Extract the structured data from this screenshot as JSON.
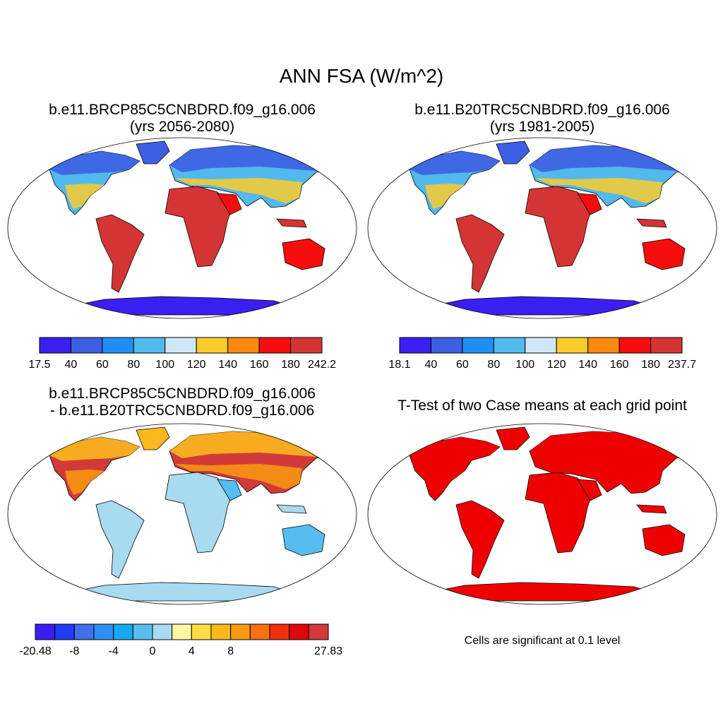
{
  "title": "ANN FSA (W/m^2)",
  "panels": [
    {
      "title_line1": "b.e11.BRCP85C5CNBDRD.f09_g16.006",
      "title_line2": "(yrs 2056-2080)",
      "colorbar": {
        "colors": [
          "#3b1ef2",
          "#3d5fe3",
          "#1e90f5",
          "#52b9ed",
          "#cfe8f7",
          "#fbcb2c",
          "#fb8a0e",
          "#f50d0d",
          "#d43534"
        ],
        "labels": [
          "17.5",
          "40",
          "60",
          "80",
          "100",
          "120",
          "140",
          "160",
          "180",
          "242.2"
        ]
      }
    },
    {
      "title_line1": "b.e11.B20TRC5CNBDRD.f09_g16.006",
      "title_line2": "(yrs 1981-2005)",
      "colorbar": {
        "colors": [
          "#3b1ef2",
          "#3d5fe3",
          "#1e90f5",
          "#52b9ed",
          "#cfe8f7",
          "#fbcb2c",
          "#fb8a0e",
          "#f50d0d",
          "#d43534"
        ],
        "labels": [
          "18.1",
          "40",
          "60",
          "80",
          "100",
          "120",
          "140",
          "160",
          "180",
          "237.7"
        ]
      }
    },
    {
      "title_line1": "b.e11.BRCP85C5CNBDRD.f09_g16.006",
      "title_line2": "- b.e11.B20TRC5CNBDRD.f09_g16.006",
      "colorbar": {
        "colors": [
          "#3b1ef2",
          "#1e3cf5",
          "#3f6ee6",
          "#2f8ff5",
          "#16a9f2",
          "#56bdee",
          "#a8daf0",
          "#fff7a3",
          "#fddc45",
          "#fbb81e",
          "#fa9a12",
          "#f8700f",
          "#f2300e",
          "#e0070c",
          "#d23a3a"
        ],
        "labels": [
          "-20.48",
          "",
          "-8",
          "",
          "-4",
          "",
          "0",
          "",
          "4",
          "",
          "8",
          "",
          "",
          "",
          "",
          "27.83"
        ]
      }
    },
    {
      "title_line1": "T-Test of two Case means at each grid point",
      "note": "Cells are significant at 0.1 level"
    }
  ],
  "map_colors": {
    "p1": {
      "antarctica": "#3b1ef2",
      "arctic": "#3d5fe3",
      "boreal": "#52b9ed",
      "midlat": "#fbcb2c",
      "tropics": "#d43534",
      "desert": "#f50d0d"
    },
    "p2": {
      "antarctica": "#3b1ef2",
      "arctic": "#3d5fe3",
      "boreal": "#52b9ed",
      "midlat": "#fbcb2c",
      "tropics": "#d43534",
      "desert": "#f50d0d"
    },
    "p3": {
      "antarctica": "#a8daf0",
      "arctic": "#fbb81e",
      "boreal": "#d23a3a",
      "midlat": "#fa9a12",
      "tropics": "#a8daf0",
      "desert": "#56bdee"
    },
    "p4": {
      "antarctica": "#ee0000",
      "arctic": "#ee0000",
      "boreal": "#ee0000",
      "midlat": "#ee0000",
      "tropics": "#ee0000",
      "desert": "#ee0000"
    }
  }
}
